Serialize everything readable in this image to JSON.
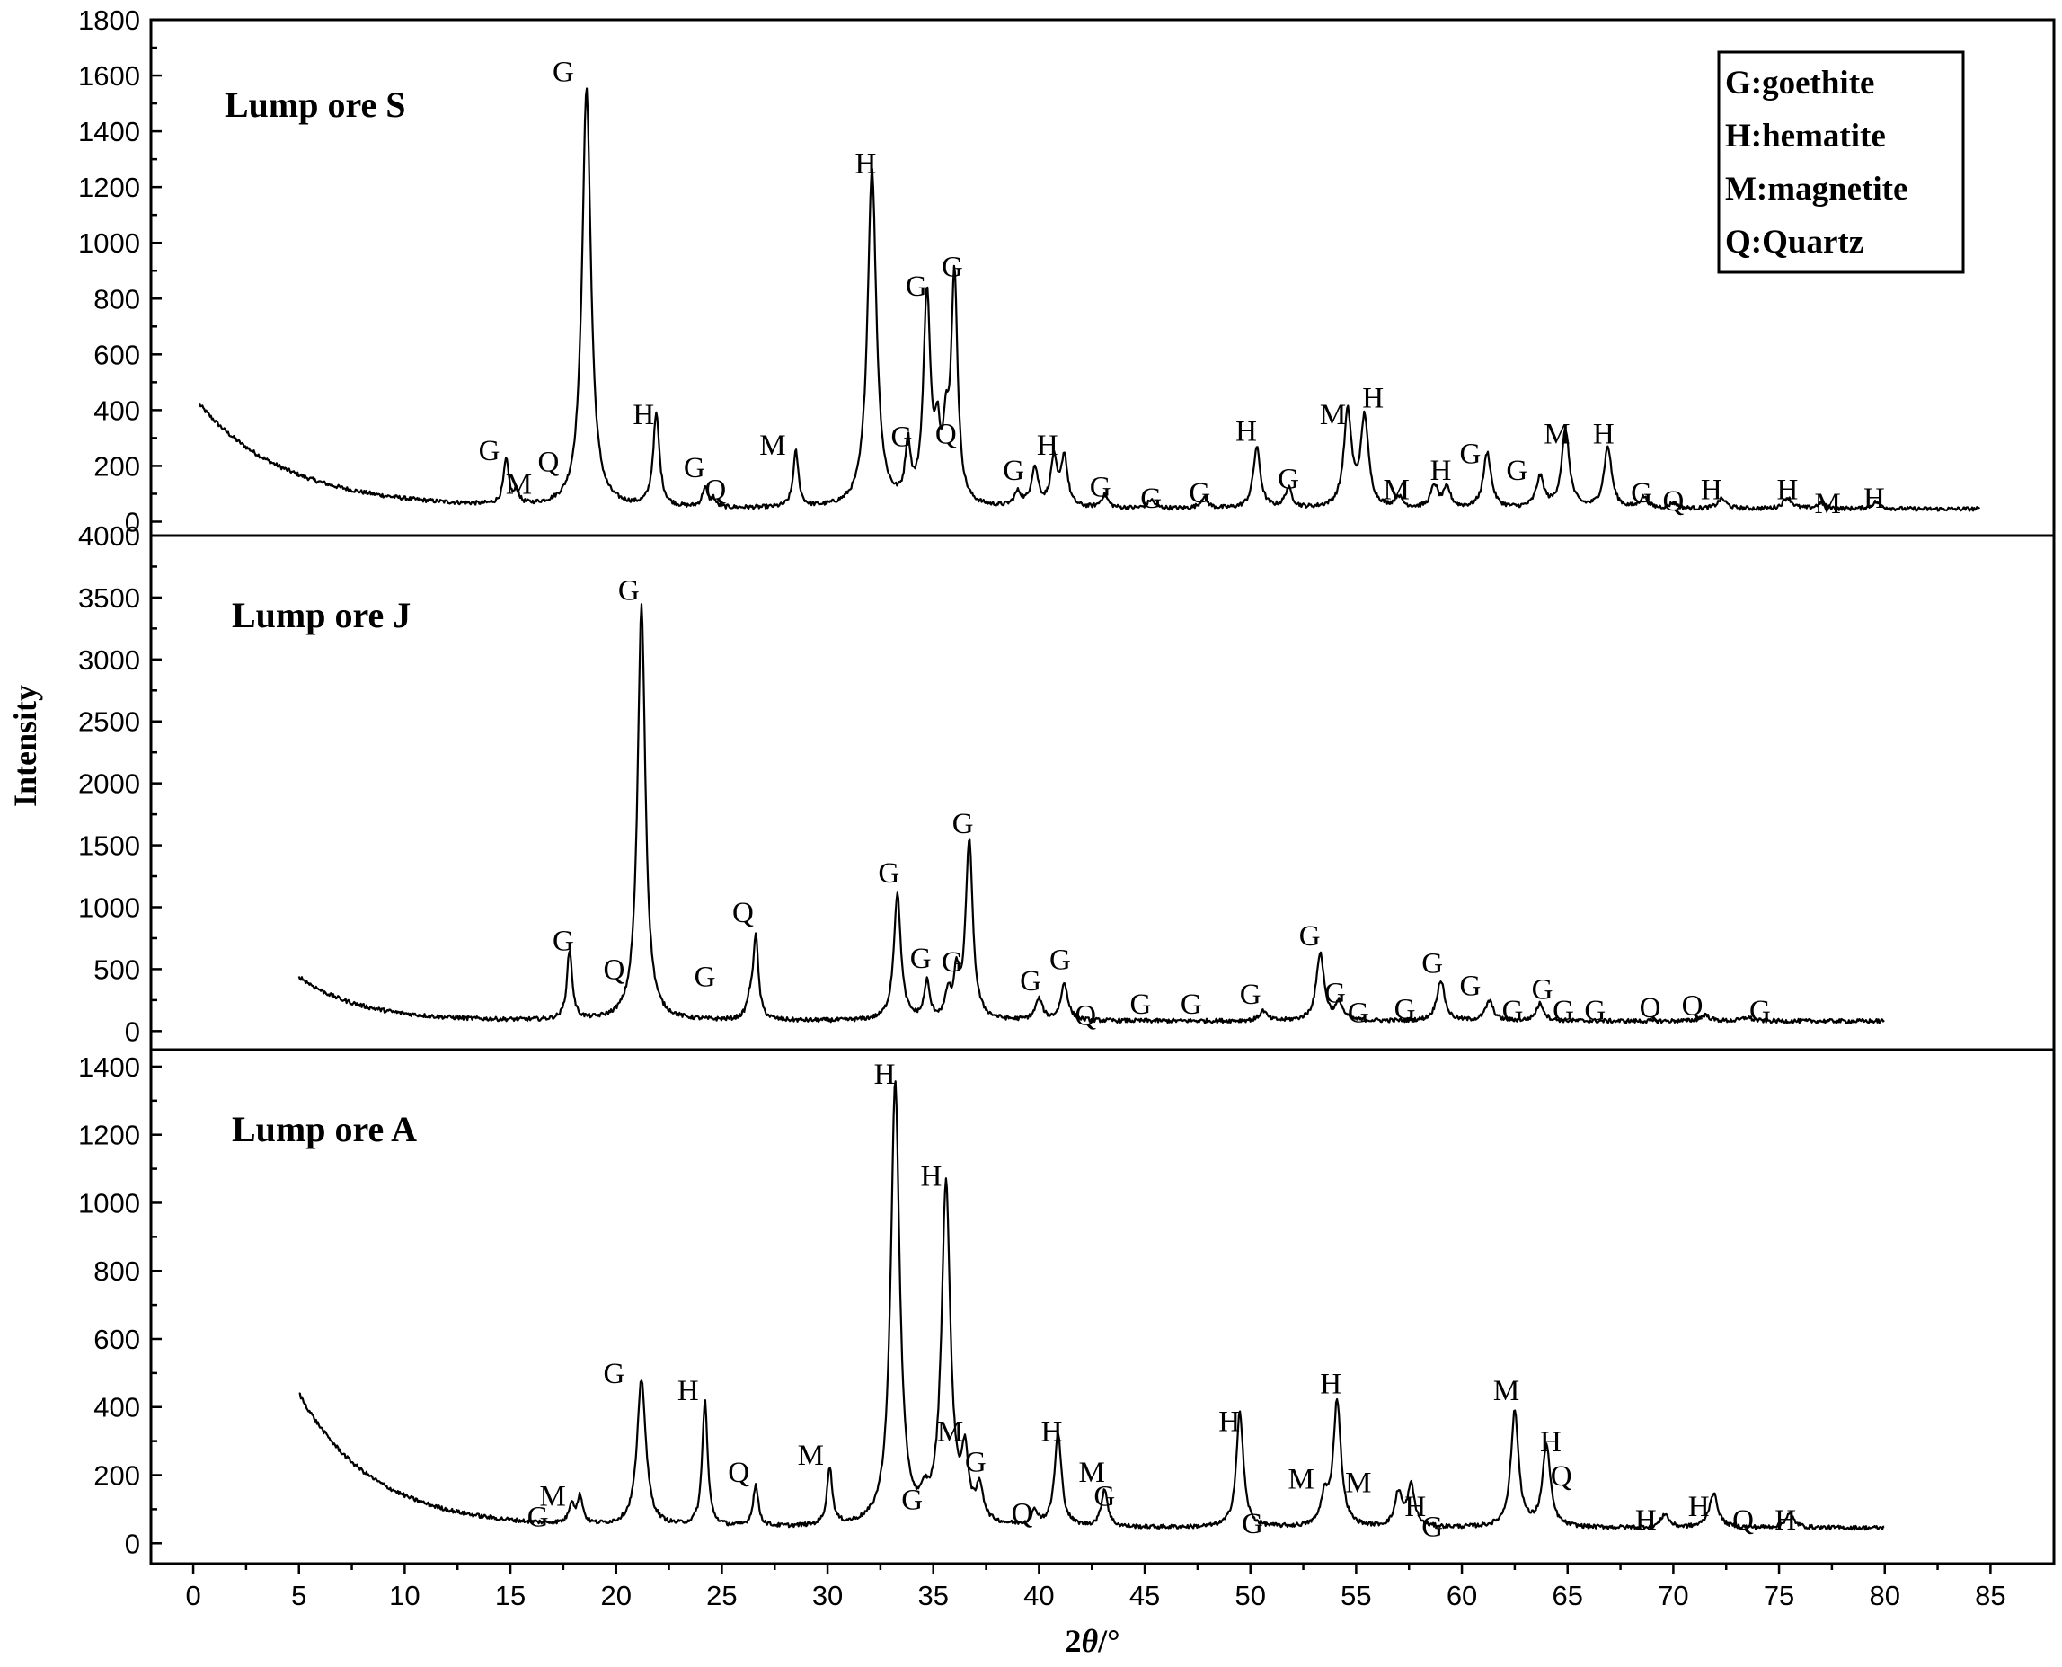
{
  "chart_data": {
    "type": "line",
    "x_axis": {
      "label_prefix": "2",
      "label_theta": "θ",
      "label_suffix": "/°",
      "range": [
        -2,
        88
      ],
      "ticks": [
        0,
        5,
        10,
        15,
        20,
        25,
        30,
        35,
        40,
        45,
        50,
        55,
        60,
        65,
        70,
        75,
        80,
        85
      ]
    },
    "y_axis_label": "Intensity",
    "legend": [
      "G:goethite",
      "H:hematite",
      "M:magnetite",
      "Q:Quartz"
    ],
    "panels": [
      {
        "name": "Lump ore S",
        "ylim": [
          -50,
          1800
        ],
        "yticks": [
          0,
          200,
          400,
          600,
          800,
          1000,
          1200,
          1400,
          1600,
          1800
        ],
        "xrange": [
          0.3,
          84.5
        ],
        "background": {
          "start": 420,
          "floor": 45,
          "decay": 4.2
        },
        "peaks": [
          [
            14.8,
            160,
            0.15
          ],
          [
            15.3,
            50,
            0.12
          ],
          [
            18.6,
            1500,
            0.25
          ],
          [
            21.9,
            330,
            0.18
          ],
          [
            24.2,
            70,
            0.15
          ],
          [
            24.6,
            30,
            0.12
          ],
          [
            28.5,
            200,
            0.15
          ],
          [
            32.1,
            1210,
            0.25
          ],
          [
            33.8,
            200,
            0.15
          ],
          [
            34.7,
            750,
            0.2
          ],
          [
            35.2,
            210,
            0.15
          ],
          [
            35.6,
            220,
            0.15
          ],
          [
            36.0,
            820,
            0.18
          ],
          [
            39.0,
            50,
            0.2
          ],
          [
            39.8,
            140,
            0.2
          ],
          [
            40.7,
            170,
            0.18
          ],
          [
            41.2,
            180,
            0.18
          ],
          [
            43.1,
            45,
            0.2
          ],
          [
            45.3,
            30,
            0.2
          ],
          [
            47.8,
            40,
            0.2
          ],
          [
            50.3,
            220,
            0.2
          ],
          [
            51.8,
            70,
            0.2
          ],
          [
            54.6,
            340,
            0.22
          ],
          [
            55.4,
            320,
            0.22
          ],
          [
            57.0,
            40,
            0.2
          ],
          [
            58.7,
            80,
            0.2
          ],
          [
            59.3,
            70,
            0.2
          ],
          [
            61.2,
            200,
            0.22
          ],
          [
            63.7,
            110,
            0.22
          ],
          [
            64.9,
            280,
            0.22
          ],
          [
            66.9,
            220,
            0.22
          ],
          [
            68.6,
            40,
            0.22
          ],
          [
            70.0,
            20,
            0.22
          ],
          [
            72.3,
            35,
            0.25
          ],
          [
            75.4,
            40,
            0.25
          ],
          [
            77.0,
            20,
            0.25
          ],
          [
            79.6,
            25,
            0.25
          ]
        ],
        "labels": [
          {
            "text": "G",
            "x": 14.0,
            "y": 220
          },
          {
            "text": "M",
            "x": 15.4,
            "y": 100
          },
          {
            "text": "Q",
            "x": 16.8,
            "y": 180
          },
          {
            "text": "G",
            "x": 17.5,
            "y": 1580
          },
          {
            "text": "H",
            "x": 21.3,
            "y": 350
          },
          {
            "text": "G",
            "x": 23.7,
            "y": 160
          },
          {
            "text": "Q",
            "x": 24.7,
            "y": 80
          },
          {
            "text": "M",
            "x": 27.4,
            "y": 240
          },
          {
            "text": "H",
            "x": 31.8,
            "y": 1250
          },
          {
            "text": "G",
            "x": 33.5,
            "y": 270
          },
          {
            "text": "G",
            "x": 34.2,
            "y": 810
          },
          {
            "text": "Q",
            "x": 35.6,
            "y": 280
          },
          {
            "text": "G",
            "x": 35.9,
            "y": 880
          },
          {
            "text": "G",
            "x": 38.8,
            "y": 150
          },
          {
            "text": "H",
            "x": 40.4,
            "y": 240
          },
          {
            "text": "G",
            "x": 42.9,
            "y": 90
          },
          {
            "text": "G",
            "x": 45.3,
            "y": 50
          },
          {
            "text": "G",
            "x": 47.6,
            "y": 70
          },
          {
            "text": "H",
            "x": 49.8,
            "y": 290
          },
          {
            "text": "G",
            "x": 51.8,
            "y": 120
          },
          {
            "text": "M",
            "x": 53.9,
            "y": 350
          },
          {
            "text": "H",
            "x": 55.8,
            "y": 410
          },
          {
            "text": "M",
            "x": 56.9,
            "y": 80
          },
          {
            "text": "H",
            "x": 59.0,
            "y": 150
          },
          {
            "text": "G",
            "x": 60.4,
            "y": 210
          },
          {
            "text": "G",
            "x": 62.6,
            "y": 150
          },
          {
            "text": "M",
            "x": 64.5,
            "y": 280
          },
          {
            "text": "H",
            "x": 66.7,
            "y": 280
          },
          {
            "text": "G",
            "x": 68.5,
            "y": 70
          },
          {
            "text": "Q",
            "x": 70.0,
            "y": 40
          },
          {
            "text": "H",
            "x": 71.8,
            "y": 80
          },
          {
            "text": "H",
            "x": 75.4,
            "y": 80
          },
          {
            "text": "M",
            "x": 77.3,
            "y": 30
          },
          {
            "text": "H",
            "x": 79.5,
            "y": 50
          }
        ]
      },
      {
        "name": "Lump ore J",
        "ylim": [
          -150,
          4000
        ],
        "yticks": [
          0,
          500,
          1000,
          1500,
          2000,
          2500,
          3000,
          3500,
          4000
        ],
        "xrange": [
          5,
          80
        ],
        "background": {
          "start": 440,
          "floor": 80,
          "decay": 2.8
        },
        "peaks": [
          [
            17.8,
            560,
            0.15
          ],
          [
            21.2,
            3350,
            0.22
          ],
          [
            26.3,
            120,
            0.15
          ],
          [
            26.6,
            680,
            0.15
          ],
          [
            33.3,
            1020,
            0.2
          ],
          [
            34.7,
            300,
            0.15
          ],
          [
            35.7,
            200,
            0.15
          ],
          [
            36.1,
            330,
            0.15
          ],
          [
            36.7,
            1450,
            0.2
          ],
          [
            40.0,
            170,
            0.2
          ],
          [
            41.2,
            300,
            0.2
          ],
          [
            50.6,
            80,
            0.2
          ],
          [
            53.3,
            550,
            0.22
          ],
          [
            54.2,
            140,
            0.2
          ],
          [
            59.0,
            330,
            0.22
          ],
          [
            61.3,
            160,
            0.22
          ],
          [
            63.7,
            140,
            0.22
          ],
          [
            71.5,
            50,
            0.25
          ],
          [
            73.5,
            30,
            0.25
          ]
        ],
        "labels": [
          {
            "text": "G",
            "x": 17.5,
            "y": 650
          },
          {
            "text": "Q",
            "x": 19.9,
            "y": 420
          },
          {
            "text": "G",
            "x": 20.6,
            "y": 3480
          },
          {
            "text": "G",
            "x": 24.2,
            "y": 360
          },
          {
            "text": "Q",
            "x": 26.0,
            "y": 880
          },
          {
            "text": "G",
            "x": 32.9,
            "y": 1200
          },
          {
            "text": "G",
            "x": 34.4,
            "y": 510
          },
          {
            "text": "G",
            "x": 35.9,
            "y": 480
          },
          {
            "text": "G",
            "x": 36.4,
            "y": 1600
          },
          {
            "text": "G",
            "x": 39.6,
            "y": 330
          },
          {
            "text": "G",
            "x": 41.0,
            "y": 500
          },
          {
            "text": "Q",
            "x": 42.2,
            "y": 50
          },
          {
            "text": "G",
            "x": 44.8,
            "y": 140
          },
          {
            "text": "G",
            "x": 47.2,
            "y": 140
          },
          {
            "text": "G",
            "x": 50.0,
            "y": 220
          },
          {
            "text": "G",
            "x": 52.8,
            "y": 690
          },
          {
            "text": "G",
            "x": 54.0,
            "y": 230
          },
          {
            "text": "G",
            "x": 55.1,
            "y": 70
          },
          {
            "text": "G",
            "x": 57.3,
            "y": 100
          },
          {
            "text": "G",
            "x": 58.6,
            "y": 470
          },
          {
            "text": "G",
            "x": 60.4,
            "y": 290
          },
          {
            "text": "G",
            "x": 62.4,
            "y": 90
          },
          {
            "text": "G",
            "x": 63.8,
            "y": 260
          },
          {
            "text": "G",
            "x": 64.8,
            "y": 90
          },
          {
            "text": "G",
            "x": 66.3,
            "y": 90
          },
          {
            "text": "Q",
            "x": 68.9,
            "y": 110
          },
          {
            "text": "Q",
            "x": 70.9,
            "y": 130
          },
          {
            "text": "G",
            "x": 74.1,
            "y": 90
          }
        ]
      },
      {
        "name": "Lump ore A",
        "ylim": [
          -60,
          1450
        ],
        "yticks": [
          0,
          200,
          400,
          600,
          800,
          1000,
          1200,
          1400
        ],
        "xrange": [
          5,
          80
        ],
        "background": {
          "start": 440,
          "floor": 45,
          "decay": 3.5
        },
        "peaks": [
          [
            17.9,
            60,
            0.15
          ],
          [
            18.3,
            80,
            0.15
          ],
          [
            21.2,
            430,
            0.25
          ],
          [
            24.2,
            370,
            0.15
          ],
          [
            26.6,
            120,
            0.15
          ],
          [
            30.1,
            170,
            0.15
          ],
          [
            33.2,
            1300,
            0.25
          ],
          [
            34.6,
            50,
            0.2
          ],
          [
            35.6,
            1000,
            0.25
          ],
          [
            36.5,
            180,
            0.2
          ],
          [
            37.2,
            100,
            0.2
          ],
          [
            39.8,
            40,
            0.2
          ],
          [
            40.9,
            270,
            0.2
          ],
          [
            43.1,
            110,
            0.18
          ],
          [
            49.5,
            340,
            0.2
          ],
          [
            53.5,
            80,
            0.2
          ],
          [
            54.1,
            370,
            0.22
          ],
          [
            57.0,
            100,
            0.2
          ],
          [
            57.6,
            120,
            0.2
          ],
          [
            62.5,
            340,
            0.22
          ],
          [
            64.0,
            240,
            0.22
          ],
          [
            69.6,
            40,
            0.22
          ],
          [
            71.9,
            100,
            0.25
          ],
          [
            75.5,
            40,
            0.25
          ]
        ],
        "labels": [
          {
            "text": "G",
            "x": 16.3,
            "y": 50
          },
          {
            "text": "M",
            "x": 17.0,
            "y": 110
          },
          {
            "text": "G",
            "x": 19.9,
            "y": 470
          },
          {
            "text": "H",
            "x": 23.4,
            "y": 420
          },
          {
            "text": "Q",
            "x": 25.8,
            "y": 180
          },
          {
            "text": "M",
            "x": 29.2,
            "y": 230
          },
          {
            "text": "H",
            "x": 32.7,
            "y": 1350
          },
          {
            "text": "G",
            "x": 34.0,
            "y": 100
          },
          {
            "text": "H",
            "x": 34.9,
            "y": 1050
          },
          {
            "text": "M",
            "x": 35.8,
            "y": 300
          },
          {
            "text": "G",
            "x": 37.0,
            "y": 210
          },
          {
            "text": "Q",
            "x": 39.2,
            "y": 60
          },
          {
            "text": "H",
            "x": 40.6,
            "y": 300
          },
          {
            "text": "M",
            "x": 42.5,
            "y": 180
          },
          {
            "text": "G",
            "x": 43.1,
            "y": 110
          },
          {
            "text": "H",
            "x": 49.0,
            "y": 330
          },
          {
            "text": "G",
            "x": 50.1,
            "y": 30
          },
          {
            "text": "M",
            "x": 52.4,
            "y": 160
          },
          {
            "text": "H",
            "x": 53.8,
            "y": 440
          },
          {
            "text": "M",
            "x": 55.1,
            "y": 150
          },
          {
            "text": "H",
            "x": 57.8,
            "y": 80
          },
          {
            "text": "G",
            "x": 58.6,
            "y": 20
          },
          {
            "text": "M",
            "x": 62.1,
            "y": 420
          },
          {
            "text": "H",
            "x": 64.2,
            "y": 270
          },
          {
            "text": "Q",
            "x": 64.7,
            "y": 170
          },
          {
            "text": "H",
            "x": 68.7,
            "y": 40
          },
          {
            "text": "H",
            "x": 71.2,
            "y": 80
          },
          {
            "text": "Q",
            "x": 73.3,
            "y": 40
          },
          {
            "text": "H",
            "x": 75.3,
            "y": 40
          }
        ]
      }
    ]
  }
}
